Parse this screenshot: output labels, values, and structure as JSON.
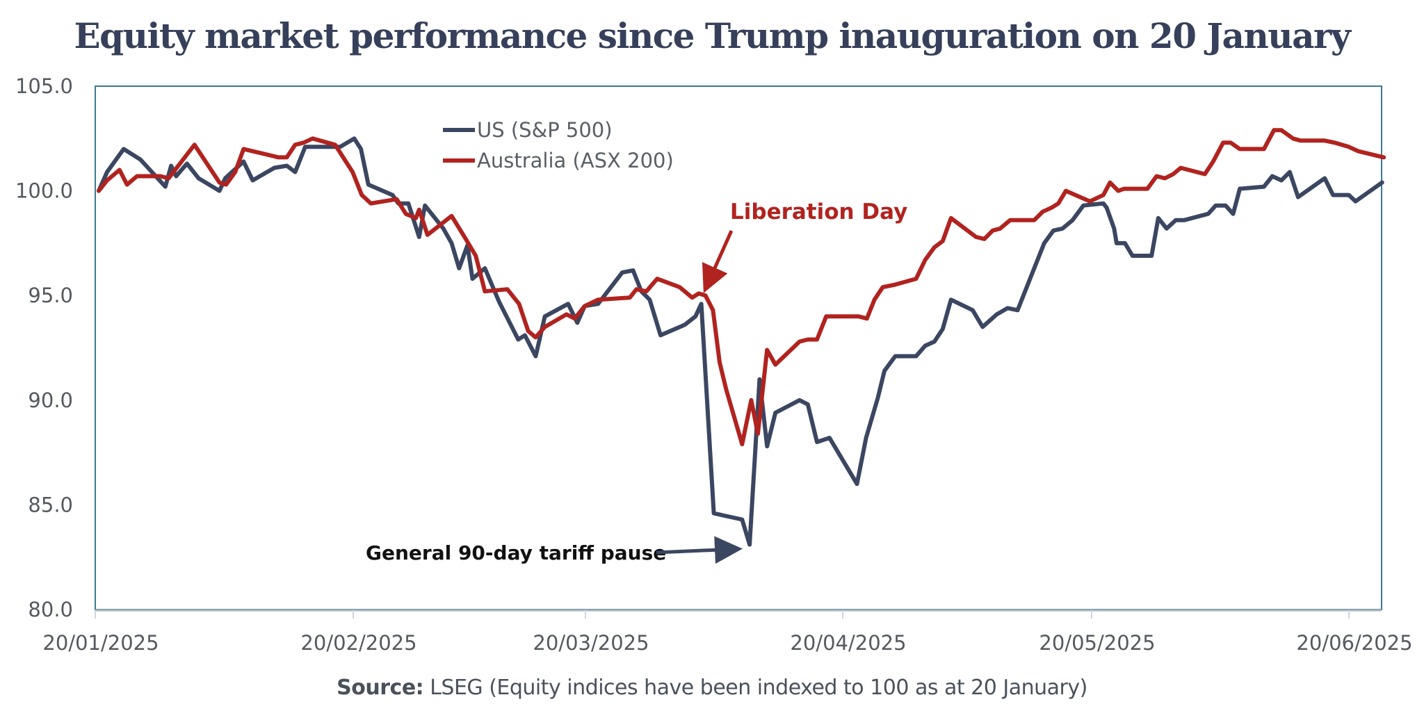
{
  "chart_data": {
    "type": "line",
    "title": "Equity market performance since Trump inauguration on 20 January",
    "xlabel": "",
    "ylabel": "",
    "x_unit": "days since 20/01/2025",
    "xlim": [
      0,
      155
    ],
    "ylim": [
      80,
      105
    ],
    "yticks": [
      80.0,
      85.0,
      90.0,
      95.0,
      100.0,
      105.0
    ],
    "ytick_labels": [
      "80.0",
      "85.0",
      "90.0",
      "95.0",
      "100.0",
      "105.0"
    ],
    "xticks": [
      0,
      31,
      59,
      90,
      120,
      151
    ],
    "xtick_labels": [
      "20/01/2025",
      "20/02/2025",
      "20/03/2025",
      "20/04/2025",
      "20/05/2025",
      "20/06/2025"
    ],
    "grid": false,
    "legend_placement": "top-left-center",
    "series": [
      {
        "name": "US (S&P 500)",
        "color": "#3b4661",
        "x": [
          0,
          1,
          3,
          5,
          8,
          8.7,
          9.3,
          10.6,
          12,
          14.5,
          15.2,
          17.4,
          18.5,
          21.1,
          22.6,
          23.6,
          24.8,
          29,
          30.7,
          31.5,
          32.4,
          35.3,
          36,
          37.2,
          38.5,
          39.2,
          41.4,
          42.4,
          43.3,
          44.3,
          44.9,
          46.4,
          48.1,
          50.4,
          51.2,
          52.5,
          53.6,
          56.4,
          57.5,
          58.4,
          60,
          62.9,
          64.2,
          65.2,
          66.2,
          67.5,
          70.4,
          71.7,
          72.4,
          73.9,
          75,
          77.3,
          78.2,
          79.4,
          80.3,
          81.3,
          84.2,
          85.2,
          86.3,
          87.8,
          91.1,
          92.2,
          93.6,
          94.4,
          95.7,
          98.2,
          99.3,
          100.4,
          101.4,
          102.4,
          105,
          106.2,
          107.9,
          109.2,
          110.4,
          112,
          113.6,
          114.7,
          115.8,
          117,
          118.3,
          120.7,
          121.1,
          122,
          122.3,
          123.3,
          124.2,
          126.5,
          127.3,
          128.3,
          129.4,
          130.4,
          133.3,
          134.2,
          135.4,
          136.3,
          137.1,
          140,
          141,
          142.1,
          143.1,
          144.1,
          147.3,
          148.3,
          150.2,
          151,
          154.2
        ],
        "values": [
          100.0,
          100.9,
          102.0,
          101.5,
          100.2,
          101.2,
          100.7,
          101.3,
          100.6,
          100.0,
          100.6,
          101.4,
          100.5,
          101.1,
          101.2,
          100.9,
          102.1,
          102.1,
          102.5,
          102.0,
          100.3,
          99.8,
          99.4,
          99.4,
          97.8,
          99.3,
          98.2,
          97.5,
          96.3,
          97.4,
          95.8,
          96.3,
          94.7,
          92.9,
          93.1,
          92.1,
          94.0,
          94.6,
          93.7,
          94.5,
          94.6,
          96.1,
          96.2,
          95.2,
          94.8,
          93.1,
          93.6,
          94.0,
          94.6,
          84.6,
          84.5,
          84.3,
          83.1,
          91.0,
          87.8,
          89.4,
          90.0,
          89.8,
          88.0,
          88.2,
          86.0,
          88.2,
          90.1,
          91.4,
          92.1,
          92.1,
          92.6,
          92.8,
          93.4,
          94.8,
          94.3,
          93.5,
          94.1,
          94.4,
          94.3,
          95.9,
          97.5,
          98.1,
          98.2,
          98.6,
          99.3,
          99.4,
          99.2,
          98.2,
          97.5,
          97.5,
          96.9,
          96.9,
          98.7,
          98.2,
          98.6,
          98.6,
          98.9,
          99.3,
          99.3,
          98.9,
          100.1,
          100.2,
          100.7,
          100.5,
          100.9,
          99.7,
          100.6,
          99.8,
          99.8,
          99.5,
          100.4
        ]
      },
      {
        "name": "Australia (ASX 200)",
        "color": "#b1231f",
        "x": [
          0,
          1,
          2.5,
          3.4,
          4.6,
          7.4,
          8.4,
          11.5,
          14.5,
          15.3,
          16.4,
          17.4,
          21.6,
          22.6,
          23.6,
          24.6,
          25.7,
          28.4,
          30.5,
          31.6,
          32.7,
          35.8,
          36.9,
          38.1,
          38.5,
          39.5,
          42.4,
          44.1,
          45.3,
          46.4,
          49.1,
          50.5,
          51.6,
          52.5,
          53.6,
          56.2,
          57.2,
          58.4,
          60,
          63.8,
          64.6,
          65.8,
          67.1,
          69.8,
          71.3,
          72.1,
          72.9,
          73.8,
          74.6,
          75.4,
          77.3,
          78.4,
          79.2,
          80.3,
          81.3,
          84.2,
          85.2,
          86.3,
          87.4,
          91.3,
          92.3,
          93.2,
          94.2,
          95.5,
          98.2,
          99.3,
          100.4,
          101.4,
          102.4,
          105.4,
          106.4,
          107.4,
          108.3,
          109.5,
          112.4,
          113.4,
          114.5,
          115.3,
          116.2,
          119.1,
          120.7,
          121.5,
          122.5,
          123.2,
          126,
          127.1,
          128.1,
          129.1,
          130,
          132.9,
          133.9,
          135.1,
          136,
          137.1,
          140,
          141.2,
          142.1,
          143.5,
          144.4,
          147.3,
          148.5,
          150.2,
          151.3,
          154.4
        ],
        "values": [
          100.0,
          100.5,
          101.0,
          100.3,
          100.7,
          100.7,
          100.6,
          102.2,
          100.4,
          100.3,
          100.9,
          102.0,
          101.6,
          101.6,
          102.2,
          102.3,
          102.5,
          102.2,
          100.9,
          99.8,
          99.4,
          99.6,
          98.9,
          98.7,
          99.1,
          97.9,
          98.8,
          97.7,
          96.9,
          95.2,
          95.3,
          94.6,
          93.3,
          93.0,
          93.5,
          94.1,
          93.9,
          94.5,
          94.8,
          94.9,
          95.3,
          95.2,
          95.8,
          95.4,
          94.9,
          95.1,
          95.0,
          94.3,
          91.8,
          90.5,
          87.9,
          90.0,
          88.4,
          92.4,
          91.7,
          92.8,
          92.9,
          92.9,
          94.0,
          94.0,
          93.9,
          94.8,
          95.4,
          95.5,
          95.8,
          96.7,
          97.3,
          97.6,
          98.7,
          97.8,
          97.7,
          98.1,
          98.2,
          98.6,
          98.6,
          99.0,
          99.2,
          99.4,
          100.0,
          99.5,
          99.8,
          100.4,
          100.0,
          100.1,
          100.1,
          100.7,
          100.6,
          100.8,
          101.1,
          100.8,
          101.4,
          102.3,
          102.3,
          102.0,
          102.0,
          102.9,
          102.9,
          102.5,
          102.4,
          102.4,
          102.3,
          102.1,
          101.9,
          101.6
        ]
      }
    ],
    "annotations": [
      {
        "text": "Liberation Day",
        "color": "#b1231f",
        "points_to": {
          "series": "Australia (ASX 200)",
          "x": 72.4,
          "y": 95.1
        },
        "text_anchor": {
          "x": 58,
          "y": 98.4
        }
      },
      {
        "text": "General 90-day tariff pause",
        "color": "#111111",
        "arrow_color": "#3b4661",
        "points_to": {
          "series": "US (S&P 500)",
          "x": 78.2,
          "y": 83.1
        },
        "text_anchor": {
          "x": 25,
          "y": 83.0
        }
      }
    ]
  },
  "footer": {
    "source_label": "Source:",
    "source_text": " LSEG  (Equity indices have been indexed to 100 as at 20 January)"
  }
}
